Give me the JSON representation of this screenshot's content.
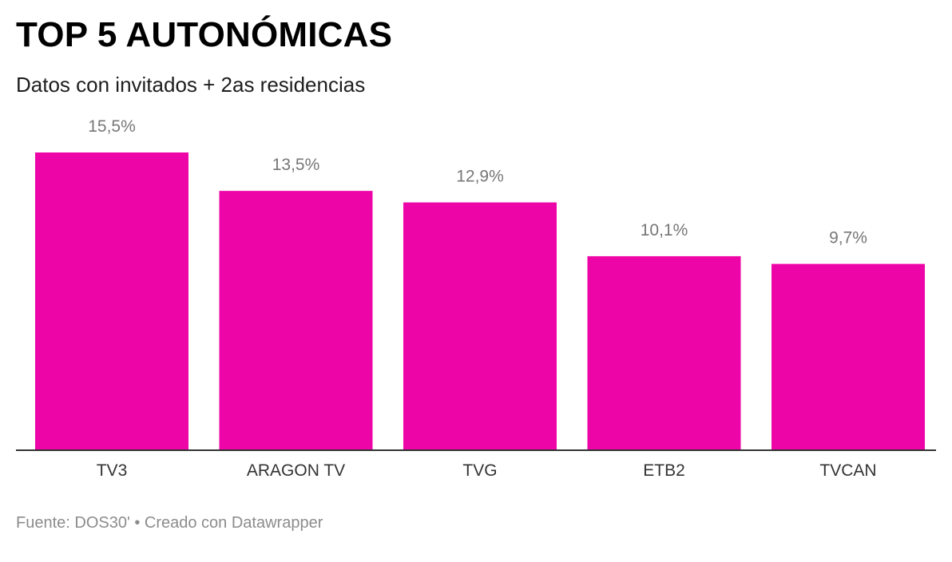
{
  "header": {
    "title": "TOP 5 AUTONÓMICAS",
    "subtitle": "Datos con invitados + 2as residencias"
  },
  "footer": {
    "source": "Fuente: DOS30' • Creado con Datawrapper"
  },
  "colors": {
    "bar": "#ee05a7",
    "value_label": "#777777",
    "axis_line": "#333333",
    "category_label": "#333333"
  },
  "chart_data": {
    "type": "bar",
    "title": "TOP 5 AUTONÓMICAS",
    "subtitle": "Datos con invitados + 2as residencias",
    "categories": [
      "TV3",
      "ARAGON TV",
      "TVG",
      "ETB2",
      "TVCAN"
    ],
    "values": [
      15.5,
      13.5,
      12.9,
      10.1,
      9.7
    ],
    "value_labels": [
      "15,5%",
      "13,5%",
      "12,9%",
      "10,1%",
      "9,7%"
    ],
    "xlabel": "",
    "ylabel": "",
    "ylim": [
      0,
      15.5
    ],
    "grid": false,
    "legend": "none"
  }
}
